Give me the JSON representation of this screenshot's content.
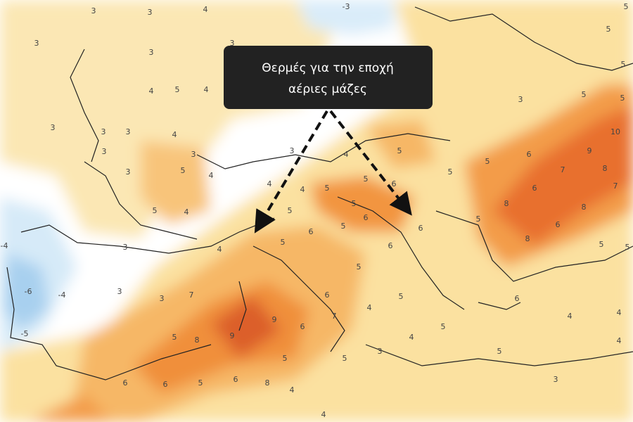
{
  "callout": {
    "lines": [
      "Θερμές για την εποχή",
      "αέριες μάζες"
    ]
  },
  "map_labels": [
    3,
    3,
    3,
    4,
    -3,
    3,
    3,
    5,
    5,
    5,
    4,
    5,
    4,
    3,
    5,
    5,
    3,
    3,
    3,
    4,
    3,
    3,
    3,
    4,
    5,
    5,
    6,
    9,
    8,
    10,
    3,
    5,
    4,
    4,
    4,
    5,
    5,
    6,
    5,
    6,
    7,
    7,
    5,
    4,
    5,
    5,
    6,
    8,
    8,
    6,
    5,
    6,
    5,
    -4,
    3,
    4,
    5,
    6,
    5,
    6,
    8,
    5,
    5,
    -6,
    -4,
    3,
    7,
    3,
    6,
    4,
    5,
    6,
    4,
    4,
    -5,
    9,
    6,
    7,
    5,
    8,
    9,
    5,
    4,
    5,
    5,
    3,
    5,
    4,
    6,
    6,
    5,
    6,
    8,
    4,
    3,
    4
  ]
}
